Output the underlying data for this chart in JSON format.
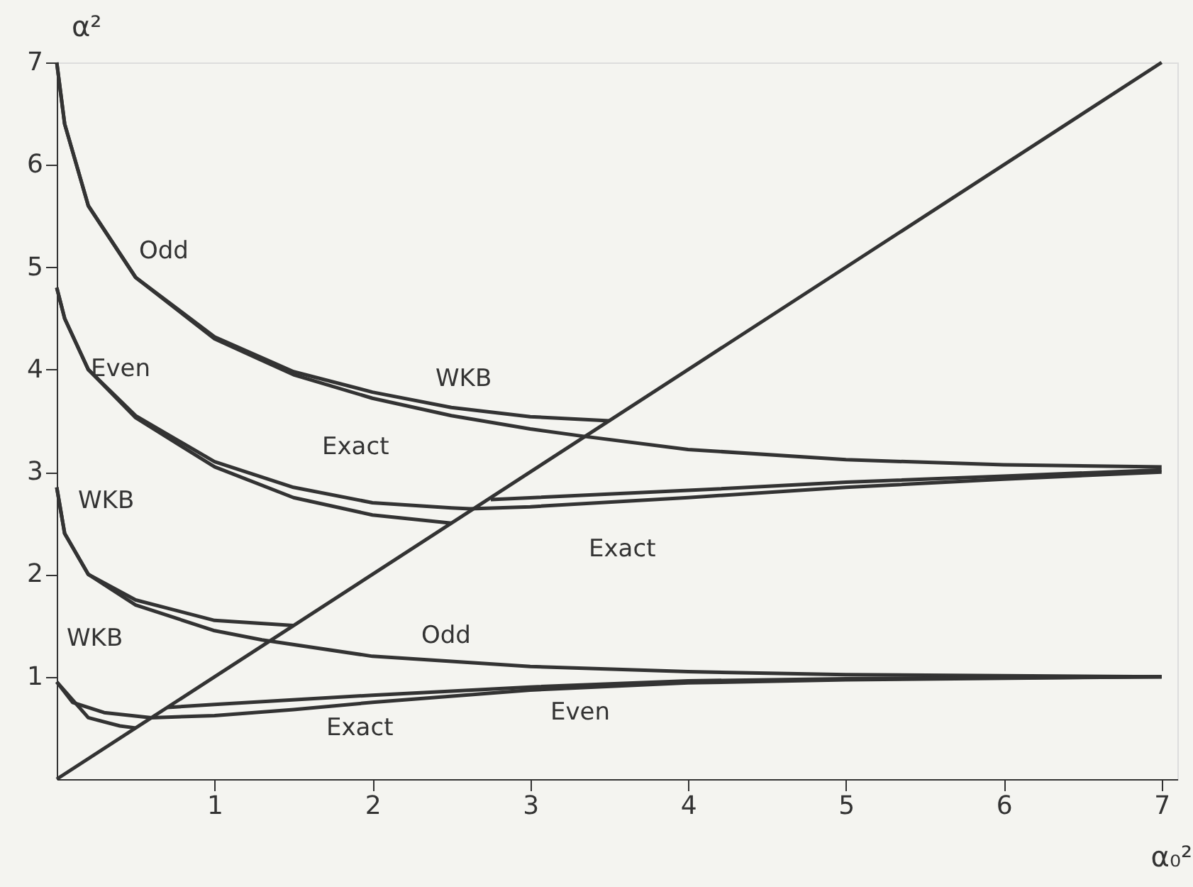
{
  "chart_data": {
    "type": "line",
    "xlabel": "α₀²",
    "ylabel": "α²",
    "xlim": [
      0,
      7.1
    ],
    "ylim": [
      0,
      7
    ],
    "xticks": [
      1,
      2,
      3,
      4,
      5,
      6,
      7
    ],
    "yticks": [
      1,
      2,
      3,
      4,
      5,
      6,
      7
    ],
    "grid": false,
    "legend": false,
    "marker": "none",
    "line_style": "solid",
    "series": [
      {
        "color": "#333333",
        "x": [
          0,
          7
        ],
        "values": [
          0,
          7
        ]
      },
      {
        "color": "#333333",
        "x": [
          0,
          0.05,
          0.2,
          0.5,
          1,
          1.5,
          2,
          2.5,
          3,
          3.33,
          4,
          5,
          6,
          7
        ],
        "values": [
          7.0,
          6.4,
          5.6,
          4.9,
          4.3,
          3.95,
          3.72,
          3.55,
          3.42,
          3.35,
          3.22,
          3.12,
          3.07,
          3.05
        ]
      },
      {
        "color": "#333333",
        "x": [
          0,
          0.05,
          0.2,
          0.5,
          1,
          1.5,
          2,
          2.5,
          3,
          3.5
        ],
        "values": [
          7.0,
          6.4,
          5.6,
          4.9,
          4.32,
          3.98,
          3.78,
          3.63,
          3.54,
          3.5
        ]
      },
      {
        "color": "#333333",
        "x": [
          0,
          0.05,
          0.2,
          0.5,
          1,
          1.5,
          2,
          2.5,
          2.62,
          3,
          4,
          5,
          6,
          7
        ],
        "values": [
          4.8,
          4.5,
          4.0,
          3.55,
          3.1,
          2.85,
          2.7,
          2.65,
          2.64,
          2.66,
          2.75,
          2.85,
          2.93,
          3.0
        ]
      },
      {
        "color": "#333333",
        "x": [
          0,
          0.05,
          0.2,
          0.5,
          1,
          1.5,
          2,
          2.5
        ],
        "values": [
          4.8,
          4.5,
          4.0,
          3.53,
          3.05,
          2.75,
          2.58,
          2.5
        ]
      },
      {
        "color": "#333333",
        "x": [
          2.75,
          4,
          5,
          6,
          7
        ],
        "values": [
          2.73,
          2.82,
          2.9,
          2.96,
          3.02
        ]
      },
      {
        "color": "#333333",
        "x": [
          0,
          0.05,
          0.2,
          0.5,
          1,
          1.3,
          2,
          3,
          4,
          5,
          7
        ],
        "values": [
          2.85,
          2.4,
          2.0,
          1.7,
          1.45,
          1.36,
          1.2,
          1.1,
          1.05,
          1.02,
          1.0
        ]
      },
      {
        "color": "#333333",
        "x": [
          0,
          0.05,
          0.2,
          0.5,
          1,
          1.5
        ],
        "values": [
          2.85,
          2.4,
          2.0,
          1.75,
          1.55,
          1.5
        ]
      },
      {
        "color": "#333333",
        "x": [
          0,
          0.1,
          0.3,
          0.6,
          1,
          1.5,
          2,
          3,
          4,
          5,
          7
        ],
        "values": [
          0.95,
          0.75,
          0.65,
          0.6,
          0.62,
          0.68,
          0.75,
          0.87,
          0.94,
          0.97,
          1.0
        ]
      },
      {
        "color": "#333333",
        "x": [
          0,
          0.2,
          0.4,
          0.5
        ],
        "values": [
          0.95,
          0.6,
          0.52,
          0.5
        ]
      },
      {
        "color": "#333333",
        "x": [
          0.7,
          1,
          2,
          3,
          4,
          5,
          7
        ],
        "values": [
          0.7,
          0.73,
          0.82,
          0.9,
          0.96,
          0.98,
          1.0
        ]
      }
    ],
    "annotations": [
      "Odd",
      "Even",
      "WKB",
      "Exact",
      "WKB",
      "Exact",
      "WKB",
      "Odd",
      "Exact",
      "Even"
    ]
  }
}
